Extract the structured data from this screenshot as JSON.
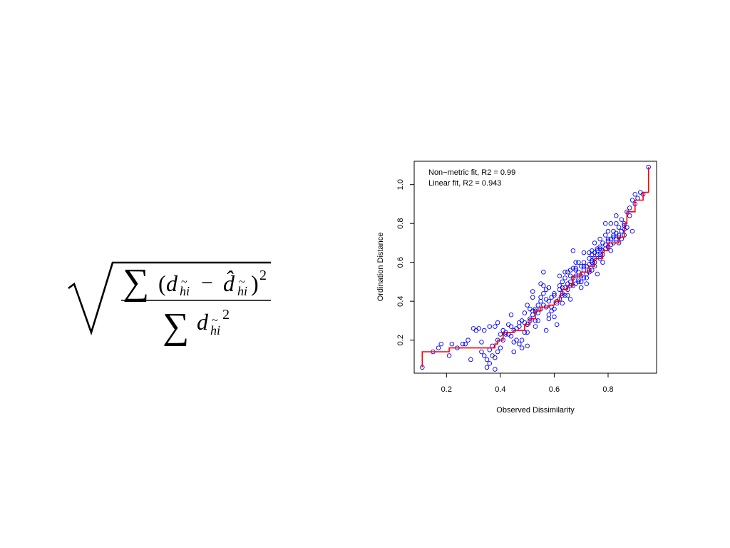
{
  "formula": {
    "sum": "∑",
    "numerator_open": "(",
    "d": "d",
    "sub": "hi",
    "tilde": "~",
    "minus": "−",
    "dhat": "d̂",
    "close": ")",
    "square": "2"
  },
  "chart_data": {
    "type": "scatter",
    "title": "",
    "xlabel": "Observed Dissimilarity",
    "ylabel": "Ordination Distance",
    "xlim": [
      0.08,
      0.98
    ],
    "ylim": [
      0.03,
      1.12
    ],
    "x_ticks": [
      0.2,
      0.4,
      0.6,
      0.8
    ],
    "x_tick_labels": [
      "0.2",
      "0.4",
      "0.6",
      "0.8"
    ],
    "y_ticks": [
      0.2,
      0.4,
      0.6,
      0.8,
      1.0
    ],
    "y_tick_labels": [
      "0.2",
      "0.4",
      "0.6",
      "0.8",
      "1.0"
    ],
    "grid": false,
    "legend": "none",
    "annotations": [
      "Non−metric fit, R2 = 0.99",
      "Linear fit, R2 = 0.943"
    ],
    "point_color": "#0000ff",
    "fit_color": "#ff0000",
    "points": [
      [
        0.11,
        0.06
      ],
      [
        0.15,
        0.14
      ],
      [
        0.17,
        0.16
      ],
      [
        0.18,
        0.18
      ],
      [
        0.21,
        0.12
      ],
      [
        0.22,
        0.18
      ],
      [
        0.24,
        0.16
      ],
      [
        0.27,
        0.18
      ],
      [
        0.28,
        0.2
      ],
      [
        0.29,
        0.1
      ],
      [
        0.31,
        0.25
      ],
      [
        0.32,
        0.26
      ],
      [
        0.33,
        0.19
      ],
      [
        0.33,
        0.14
      ],
      [
        0.34,
        0.12
      ],
      [
        0.35,
        0.1
      ],
      [
        0.35,
        0.06
      ],
      [
        0.36,
        0.15
      ],
      [
        0.36,
        0.08
      ],
      [
        0.37,
        0.17
      ],
      [
        0.37,
        0.12
      ],
      [
        0.38,
        0.11
      ],
      [
        0.38,
        0.05
      ],
      [
        0.39,
        0.2
      ],
      [
        0.4,
        0.16
      ],
      [
        0.41,
        0.2
      ],
      [
        0.41,
        0.25
      ],
      [
        0.34,
        0.25
      ],
      [
        0.36,
        0.27
      ],
      [
        0.38,
        0.27
      ],
      [
        0.39,
        0.29
      ],
      [
        0.42,
        0.23
      ],
      [
        0.43,
        0.28
      ],
      [
        0.44,
        0.33
      ],
      [
        0.44,
        0.22
      ],
      [
        0.45,
        0.14
      ],
      [
        0.45,
        0.25
      ],
      [
        0.46,
        0.26
      ],
      [
        0.47,
        0.18
      ],
      [
        0.47,
        0.29
      ],
      [
        0.48,
        0.16
      ],
      [
        0.48,
        0.3
      ],
      [
        0.49,
        0.24
      ],
      [
        0.49,
        0.34
      ],
      [
        0.5,
        0.28
      ],
      [
        0.5,
        0.24
      ],
      [
        0.5,
        0.38
      ],
      [
        0.51,
        0.31
      ],
      [
        0.51,
        0.36
      ],
      [
        0.52,
        0.33
      ],
      [
        0.52,
        0.42
      ],
      [
        0.52,
        0.45
      ],
      [
        0.53,
        0.35
      ],
      [
        0.53,
        0.3
      ],
      [
        0.54,
        0.38
      ],
      [
        0.54,
        0.34
      ],
      [
        0.55,
        0.4
      ],
      [
        0.55,
        0.36
      ],
      [
        0.55,
        0.49
      ],
      [
        0.56,
        0.55
      ],
      [
        0.56,
        0.44
      ],
      [
        0.56,
        0.38
      ],
      [
        0.57,
        0.41
      ],
      [
        0.57,
        0.46
      ],
      [
        0.57,
        0.25
      ],
      [
        0.58,
        0.33
      ],
      [
        0.58,
        0.4
      ],
      [
        0.59,
        0.35
      ],
      [
        0.59,
        0.42
      ],
      [
        0.6,
        0.36
      ],
      [
        0.6,
        0.44
      ],
      [
        0.61,
        0.39
      ],
      [
        0.61,
        0.28
      ],
      [
        0.62,
        0.46
      ],
      [
        0.62,
        0.41
      ],
      [
        0.62,
        0.48
      ],
      [
        0.63,
        0.44
      ],
      [
        0.63,
        0.5
      ],
      [
        0.63,
        0.39
      ],
      [
        0.64,
        0.47
      ],
      [
        0.64,
        0.52
      ],
      [
        0.64,
        0.55
      ],
      [
        0.65,
        0.43
      ],
      [
        0.65,
        0.49
      ],
      [
        0.66,
        0.5
      ],
      [
        0.66,
        0.41
      ],
      [
        0.66,
        0.56
      ],
      [
        0.67,
        0.52
      ],
      [
        0.67,
        0.48
      ],
      [
        0.67,
        0.66
      ],
      [
        0.68,
        0.53
      ],
      [
        0.68,
        0.57
      ],
      [
        0.68,
        0.6
      ],
      [
        0.69,
        0.51
      ],
      [
        0.69,
        0.55
      ],
      [
        0.7,
        0.58
      ],
      [
        0.7,
        0.5
      ],
      [
        0.7,
        0.47
      ],
      [
        0.71,
        0.56
      ],
      [
        0.71,
        0.6
      ],
      [
        0.71,
        0.65
      ],
      [
        0.72,
        0.52
      ],
      [
        0.72,
        0.58
      ],
      [
        0.72,
        0.49
      ],
      [
        0.73,
        0.62
      ],
      [
        0.73,
        0.55
      ],
      [
        0.73,
        0.65
      ],
      [
        0.74,
        0.6
      ],
      [
        0.74,
        0.56
      ],
      [
        0.74,
        0.66
      ],
      [
        0.75,
        0.62
      ],
      [
        0.75,
        0.7
      ],
      [
        0.75,
        0.58
      ],
      [
        0.76,
        0.67
      ],
      [
        0.76,
        0.64
      ],
      [
        0.76,
        0.54
      ],
      [
        0.77,
        0.68
      ],
      [
        0.77,
        0.62
      ],
      [
        0.77,
        0.72
      ],
      [
        0.78,
        0.66
      ],
      [
        0.78,
        0.7
      ],
      [
        0.78,
        0.6
      ],
      [
        0.79,
        0.74
      ],
      [
        0.79,
        0.67
      ],
      [
        0.79,
        0.8
      ],
      [
        0.8,
        0.71
      ],
      [
        0.8,
        0.76
      ],
      [
        0.8,
        0.68
      ],
      [
        0.81,
        0.72
      ],
      [
        0.81,
        0.8
      ],
      [
        0.81,
        0.66
      ],
      [
        0.82,
        0.74
      ],
      [
        0.82,
        0.7
      ],
      [
        0.82,
        0.76
      ],
      [
        0.83,
        0.72
      ],
      [
        0.83,
        0.8
      ],
      [
        0.83,
        0.84
      ],
      [
        0.84,
        0.74
      ],
      [
        0.84,
        0.7
      ],
      [
        0.85,
        0.76
      ],
      [
        0.85,
        0.82
      ],
      [
        0.85,
        0.72
      ],
      [
        0.86,
        0.8
      ],
      [
        0.86,
        0.74
      ],
      [
        0.87,
        0.78
      ],
      [
        0.87,
        0.86
      ],
      [
        0.88,
        0.88
      ],
      [
        0.89,
        0.92
      ],
      [
        0.89,
        0.76
      ],
      [
        0.9,
        0.9
      ],
      [
        0.9,
        0.95
      ],
      [
        0.91,
        0.93
      ],
      [
        0.92,
        0.96
      ],
      [
        0.93,
        0.95
      ],
      [
        0.95,
        1.09
      ],
      [
        0.43,
        0.23
      ],
      [
        0.46,
        0.2
      ],
      [
        0.48,
        0.2
      ],
      [
        0.5,
        0.17
      ],
      [
        0.53,
        0.27
      ],
      [
        0.54,
        0.3
      ],
      [
        0.58,
        0.31
      ],
      [
        0.6,
        0.32
      ],
      [
        0.63,
        0.43
      ],
      [
        0.65,
        0.46
      ],
      [
        0.69,
        0.5
      ],
      [
        0.72,
        0.54
      ],
      [
        0.74,
        0.61
      ],
      [
        0.77,
        0.64
      ],
      [
        0.8,
        0.68
      ],
      [
        0.44,
        0.27
      ],
      [
        0.47,
        0.27
      ],
      [
        0.51,
        0.3
      ],
      [
        0.53,
        0.36
      ],
      [
        0.57,
        0.37
      ],
      [
        0.59,
        0.37
      ],
      [
        0.61,
        0.4
      ],
      [
        0.64,
        0.43
      ],
      [
        0.66,
        0.48
      ],
      [
        0.68,
        0.49
      ],
      [
        0.7,
        0.53
      ],
      [
        0.73,
        0.59
      ],
      [
        0.75,
        0.6
      ],
      [
        0.78,
        0.64
      ],
      [
        0.81,
        0.69
      ],
      [
        0.84,
        0.73
      ],
      [
        0.86,
        0.77
      ],
      [
        0.39,
        0.14
      ],
      [
        0.4,
        0.23
      ],
      [
        0.42,
        0.24
      ],
      [
        0.3,
        0.26
      ],
      [
        0.26,
        0.18
      ],
      [
        0.45,
        0.19
      ],
      [
        0.49,
        0.29
      ],
      [
        0.52,
        0.35
      ],
      [
        0.55,
        0.42
      ],
      [
        0.58,
        0.47
      ],
      [
        0.62,
        0.53
      ],
      [
        0.65,
        0.55
      ],
      [
        0.67,
        0.57
      ],
      [
        0.69,
        0.6
      ],
      [
        0.71,
        0.58
      ],
      [
        0.74,
        0.64
      ],
      [
        0.76,
        0.66
      ],
      [
        0.79,
        0.69
      ],
      [
        0.82,
        0.73
      ],
      [
        0.84,
        0.78
      ],
      [
        0.88,
        0.84
      ],
      [
        0.56,
        0.48
      ],
      [
        0.6,
        0.43
      ],
      [
        0.63,
        0.47
      ],
      [
        0.66,
        0.53
      ],
      [
        0.68,
        0.56
      ],
      [
        0.71,
        0.52
      ],
      [
        0.73,
        0.56
      ],
      [
        0.75,
        0.65
      ],
      [
        0.77,
        0.67
      ],
      [
        0.8,
        0.72
      ],
      [
        0.83,
        0.75
      ],
      [
        0.86,
        0.79
      ]
    ],
    "nonmetric_fit": [
      [
        0.11,
        0.06
      ],
      [
        0.11,
        0.14
      ],
      [
        0.15,
        0.14
      ],
      [
        0.21,
        0.14
      ],
      [
        0.21,
        0.16
      ],
      [
        0.38,
        0.16
      ],
      [
        0.38,
        0.18
      ],
      [
        0.39,
        0.18
      ],
      [
        0.39,
        0.2
      ],
      [
        0.41,
        0.2
      ],
      [
        0.41,
        0.24
      ],
      [
        0.45,
        0.24
      ],
      [
        0.45,
        0.25
      ],
      [
        0.49,
        0.25
      ],
      [
        0.49,
        0.28
      ],
      [
        0.51,
        0.28
      ],
      [
        0.51,
        0.31
      ],
      [
        0.53,
        0.31
      ],
      [
        0.53,
        0.35
      ],
      [
        0.55,
        0.35
      ],
      [
        0.55,
        0.37
      ],
      [
        0.58,
        0.37
      ],
      [
        0.58,
        0.38
      ],
      [
        0.6,
        0.38
      ],
      [
        0.6,
        0.4
      ],
      [
        0.62,
        0.4
      ],
      [
        0.62,
        0.43
      ],
      [
        0.63,
        0.43
      ],
      [
        0.63,
        0.46
      ],
      [
        0.65,
        0.46
      ],
      [
        0.65,
        0.48
      ],
      [
        0.67,
        0.48
      ],
      [
        0.67,
        0.53
      ],
      [
        0.7,
        0.53
      ],
      [
        0.7,
        0.55
      ],
      [
        0.73,
        0.55
      ],
      [
        0.73,
        0.58
      ],
      [
        0.75,
        0.58
      ],
      [
        0.75,
        0.62
      ],
      [
        0.78,
        0.62
      ],
      [
        0.78,
        0.66
      ],
      [
        0.8,
        0.66
      ],
      [
        0.8,
        0.7
      ],
      [
        0.84,
        0.7
      ],
      [
        0.84,
        0.73
      ],
      [
        0.86,
        0.73
      ],
      [
        0.86,
        0.8
      ],
      [
        0.87,
        0.8
      ],
      [
        0.87,
        0.86
      ],
      [
        0.9,
        0.86
      ],
      [
        0.9,
        0.92
      ],
      [
        0.93,
        0.92
      ],
      [
        0.93,
        0.96
      ],
      [
        0.95,
        0.96
      ],
      [
        0.95,
        1.09
      ]
    ]
  }
}
